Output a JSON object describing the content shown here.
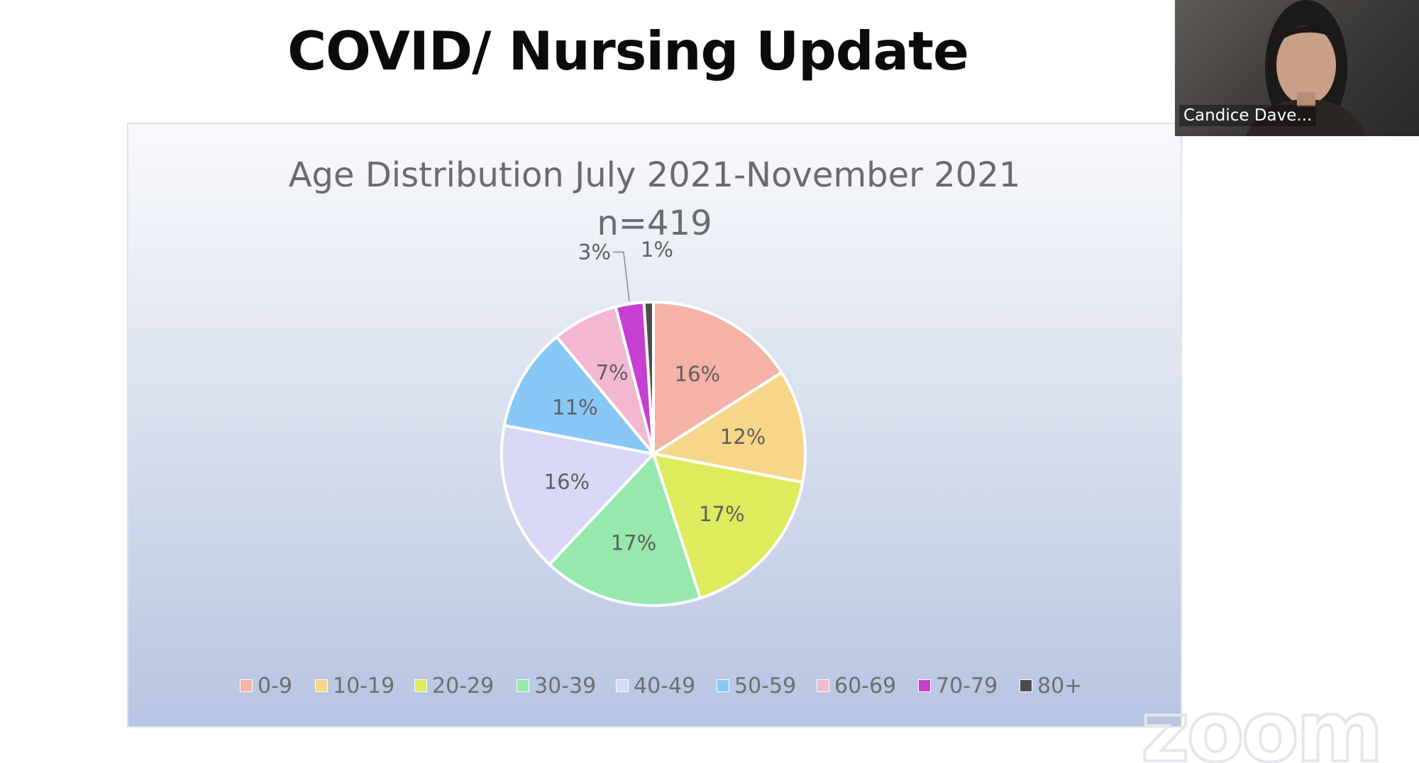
{
  "slide": {
    "title": "COVID/ Nursing Update"
  },
  "chart_data": {
    "type": "pie",
    "title": "Age Distribution July 2021-November 2021",
    "subtitle": "n=419",
    "categories": [
      "0-9",
      "10-19",
      "20-29",
      "30-39",
      "40-49",
      "50-59",
      "60-69",
      "70-79",
      "80+"
    ],
    "values": [
      16,
      12,
      17,
      17,
      16,
      11,
      7,
      3,
      1
    ],
    "data_labels": [
      "16%",
      "12%",
      "17%",
      "17%",
      "16%",
      "11%",
      "7%",
      "3%",
      "1%"
    ],
    "colors": [
      "#f4b3a6",
      "#f7d68a",
      "#dcec5c",
      "#96e8ad",
      "#d8d9f6",
      "#88c7f6",
      "#f2b8d2",
      "#c63fd0",
      "#4c4c4c"
    ],
    "legend_position": "bottom",
    "start_angle": "12 o'clock",
    "direction": "clockwise"
  },
  "video": {
    "participant_name": "Candice Dave..."
  },
  "watermark": {
    "text": "zoom"
  }
}
